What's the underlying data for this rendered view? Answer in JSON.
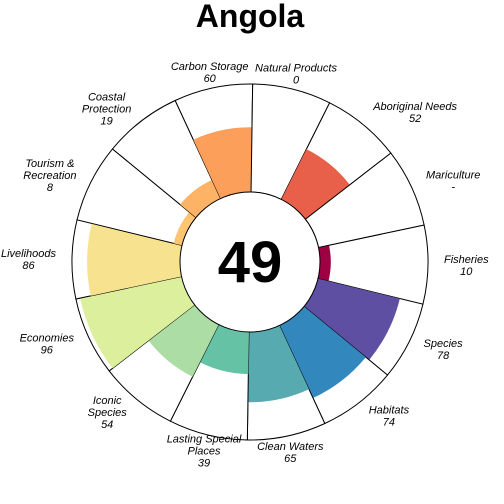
{
  "chart_data": {
    "type": "polar-bar",
    "title": "Angola",
    "center_score": "49",
    "rlim": [
      0,
      100
    ],
    "goals": [
      {
        "name": "Fisheries",
        "label_lines": [
          "Fisheries"
        ],
        "value": 10,
        "value_text": "10",
        "color": "#9E0142"
      },
      {
        "name": "Species",
        "label_lines": [
          "Species"
        ],
        "value": 78,
        "value_text": "78",
        "color": "#5E4FA2"
      },
      {
        "name": "Habitats",
        "label_lines": [
          "Habitats"
        ],
        "value": 74,
        "value_text": "74",
        "color": "#3288BD"
      },
      {
        "name": "Clean Waters",
        "label_lines": [
          "Clean Waters"
        ],
        "value": 65,
        "value_text": "65",
        "color": "#57AAB0"
      },
      {
        "name": "Lasting Special Places",
        "label_lines": [
          "Lasting Special",
          "Places"
        ],
        "value": 39,
        "value_text": "39",
        "color": "#66C2A5"
      },
      {
        "name": "Iconic Species",
        "label_lines": [
          "Iconic",
          "Species"
        ],
        "value": 54,
        "value_text": "54",
        "color": "#ABDDA4"
      },
      {
        "name": "Economies",
        "label_lines": [
          "Economies"
        ],
        "value": 96,
        "value_text": "96",
        "color": "#DCEF9C"
      },
      {
        "name": "Livelihoods",
        "label_lines": [
          "Livelihoods"
        ],
        "value": 86,
        "value_text": "86",
        "color": "#F7E38F"
      },
      {
        "name": "Tourism & Recreation",
        "label_lines": [
          "Tourism &",
          "Recreation"
        ],
        "value": 8,
        "value_text": "8",
        "color": "#FDC472"
      },
      {
        "name": "Coastal Protection",
        "label_lines": [
          "Coastal",
          "Protection"
        ],
        "value": 19,
        "value_text": "19",
        "color": "#FDB365"
      },
      {
        "name": "Carbon Storage",
        "label_lines": [
          "Carbon Storage"
        ],
        "value": 60,
        "value_text": "60",
        "color": "#FB9F5A"
      },
      {
        "name": "Natural Products",
        "label_lines": [
          "Natural Products"
        ],
        "value": 0,
        "value_text": "0",
        "color": "#F46D43"
      },
      {
        "name": "Aboriginal Needs",
        "label_lines": [
          "Aboriginal Needs"
        ],
        "value": 52,
        "value_text": "52",
        "color": "#E8604A"
      },
      {
        "name": "Mariculture",
        "label_lines": [
          "Mariculture"
        ],
        "value": null,
        "value_text": "-",
        "color": "#D53E4F"
      }
    ]
  }
}
